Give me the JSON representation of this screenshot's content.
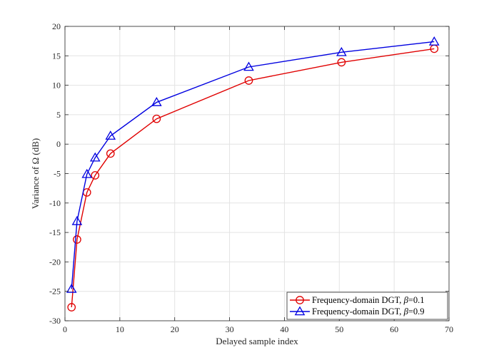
{
  "chart_data": {
    "type": "line",
    "title": "",
    "xlabel": "Delayed sample index",
    "ylabel": "Variance of Ω (dB)",
    "xlim": [
      0,
      70
    ],
    "ylim": [
      -30,
      20
    ],
    "xticks": [
      0,
      10,
      20,
      30,
      40,
      50,
      60,
      70
    ],
    "yticks": [
      -30,
      -25,
      -20,
      -15,
      -10,
      -5,
      0,
      5,
      10,
      15,
      20
    ],
    "grid": true,
    "legend_position": "bottom-right",
    "series": [
      {
        "name": "Frequency-domain DGT, β=0.1",
        "legend_prefix": "Frequency-domain DGT, ",
        "legend_symbol": "β",
        "legend_suffix": "=0.1",
        "color": "#e00000",
        "marker": "circle",
        "x": [
          1.2,
          2.2,
          4.0,
          5.5,
          8.3,
          16.7,
          33.5,
          50.4,
          67.3
        ],
        "y": [
          -27.7,
          -16.2,
          -8.2,
          -5.3,
          -1.6,
          4.3,
          10.8,
          13.9,
          16.2
        ]
      },
      {
        "name": "Frequency-domain DGT, β=0.9",
        "legend_prefix": "Frequency-domain DGT, ",
        "legend_symbol": "β",
        "legend_suffix": "=0.9",
        "color": "#0000e0",
        "marker": "triangle",
        "x": [
          1.2,
          2.2,
          4.0,
          5.5,
          8.3,
          16.7,
          33.5,
          50.4,
          67.3
        ],
        "y": [
          -24.6,
          -13.1,
          -5.1,
          -2.3,
          1.4,
          7.1,
          13.1,
          15.6,
          17.4
        ]
      }
    ]
  }
}
